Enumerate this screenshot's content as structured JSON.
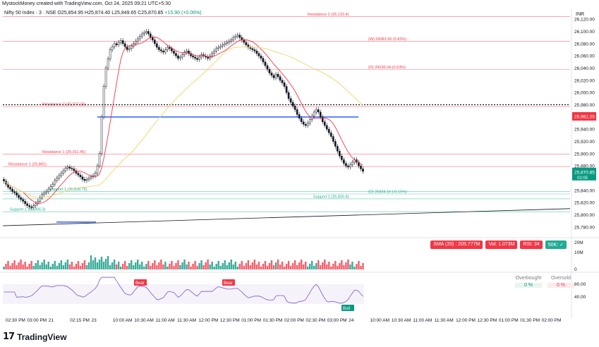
{
  "credit": "MystockMoney created with TradingView.com, Oct 24, 2025 09:21 UTC+5:30",
  "legend": {
    "symbol": "Nifty 50 Index · 3 · NSE",
    "open_label": "O",
    "open": "25,854.95",
    "high_label": "H",
    "high": "25,874.40",
    "low_label": "L",
    "low": "25,849.65",
    "close_label": "C",
    "close": "25,870.85",
    "change": "+15.90 (+0.06%)"
  },
  "currency": "INR",
  "colors": {
    "up": "#089981",
    "down": "#f23645",
    "sma_fast": "#f23645",
    "sma_slow": "#f2d36b",
    "blue_line": "#2962ff",
    "support": "#22ab94",
    "resistance": "#f23645",
    "rsi": "#7e57c2"
  },
  "chart_data": {
    "type": "candlestick",
    "y_ticks": [
      "26,120.00",
      "26,100.00",
      "26,080.00",
      "26,060.00",
      "26,040.00",
      "26,020.00",
      "26,000.00",
      "25,980.00",
      "25,960.00",
      "25,940.00",
      "25,920.00",
      "25,900.00",
      "25,880.00",
      "25,860.00",
      "25,840.00",
      "25,820.00",
      "25,800.00",
      "25,780.00"
    ],
    "y_range": [
      25774,
      26126
    ],
    "x_labels": [
      "02:30 PM",
      "03:00 PM",
      "21",
      "02:15 PM",
      "23",
      "10:00 AM",
      "10:30 AM",
      "11:00 AM",
      "11:30 AM",
      "12:00 PM",
      "12:30 PM",
      "01:00 PM",
      "01:30 PM",
      "02:00 PM",
      "02:30 PM",
      "03:00 PM",
      "24",
      "10:00 AM",
      "10:30 AM",
      "11:00 AM",
      "11:30 AM",
      "12:00 PM",
      "12:30 PM",
      "01:00 PM",
      "01:30 PM",
      "02:00 PM"
    ],
    "closes": [
      25855,
      25850,
      25845,
      25842,
      25838,
      25836,
      25832,
      25828,
      25825,
      25822,
      25818,
      25815,
      25813,
      25812,
      25815,
      25818,
      25822,
      25828,
      25833,
      25836,
      25838,
      25842,
      25846,
      25850,
      25856,
      25860,
      25864,
      25868,
      25872,
      25876,
      25878,
      25876,
      25875,
      25872,
      25868,
      25865,
      25862,
      25858,
      25856,
      25858,
      25860,
      25862,
      25864,
      25868,
      25880,
      25900,
      25960,
      26010,
      26040,
      26055,
      26070,
      26075,
      26080,
      26078,
      26082,
      26085,
      26080,
      26075,
      26070,
      26072,
      26076,
      26080,
      26084,
      26088,
      26092,
      26096,
      26098,
      26100,
      26096,
      26090,
      26086,
      26080,
      26074,
      26070,
      26068,
      26066,
      26070,
      26074,
      26072,
      26068,
      26064,
      26060,
      26056,
      26058,
      26062,
      26066,
      26068,
      26064,
      26060,
      26058,
      26056,
      26054,
      26058,
      26062,
      26060,
      26058,
      26056,
      26060,
      26064,
      26068,
      26072,
      26074,
      26076,
      26078,
      26080,
      26082,
      26084,
      26086,
      26090,
      26092,
      26094,
      26090,
      26086,
      26082,
      26078,
      26074,
      26072,
      26070,
      26068,
      26064,
      26060,
      26056,
      26050,
      26044,
      26038,
      26032,
      26028,
      26024,
      26030,
      26026,
      26020,
      26016,
      26010,
      26000,
      25990,
      25984,
      25978,
      25972,
      25964,
      25958,
      25952,
      25948,
      25946,
      25950,
      25956,
      25962,
      25968,
      25972,
      25968,
      25960,
      25952,
      25946,
      25940,
      25934,
      25928,
      25920,
      25912,
      25904,
      25896,
      25890,
      25884,
      25880,
      25878,
      25882,
      25886,
      25890,
      25886,
      25880,
      25875,
      25871
    ],
    "sma_fast_label": "SMA 20",
    "levels": [
      {
        "label": "Resistance 2 (26,133.4)",
        "price": 26124,
        "kind": "resistance"
      },
      {
        "label": "(W) 26083.56 (0.82%)",
        "price": 26084,
        "kind": "resistance"
      },
      {
        "label": "(D) 26036.04 (0.63%)",
        "price": 26038,
        "kind": "resistance"
      },
      {
        "label": "Resistance 2 (25,977.35)",
        "price": 25977,
        "kind": "resistance"
      },
      {
        "label": "Resistance 1 (25,911.45)",
        "price": 25899,
        "kind": "resistance"
      },
      {
        "label": "Resistance 1 (25,881)",
        "price": 25879,
        "kind": "resistance"
      },
      {
        "label": "Support 1 (25,838.75)",
        "price": 25838,
        "kind": "support"
      },
      {
        "label": "(D) 25834.16 (-0.15%)",
        "price": 25834,
        "kind": "support"
      },
      {
        "label": "Support 1 (25,826.9)",
        "price": 25826,
        "kind": "support"
      },
      {
        "label": "Support 1 (25,805.3)",
        "price": 25805,
        "kind": "support"
      }
    ],
    "markers": [
      {
        "label": "25,961.25",
        "price": 25961,
        "color": "#f23645"
      },
      {
        "label": "25,870.85",
        "sub": "02:05",
        "price": 25870,
        "color": "#089981"
      }
    ],
    "volume": {
      "ticks": [
        "20M",
        "10M",
        "0"
      ],
      "badges": [
        {
          "label": "SMA (20) : 205.777M",
          "color": "red"
        },
        {
          "label": "Vol: 1.073M",
          "color": "red"
        },
        {
          "label": "RSI: 34",
          "color": "red"
        },
        {
          "label": "50K: ✓",
          "color": "green"
        }
      ]
    },
    "rsi": {
      "ticks": [
        "80.00",
        "40.00"
      ],
      "tags": [
        "Bear",
        "Bear",
        "Bull"
      ],
      "table_headers": [
        "Overbought",
        "Oversold"
      ],
      "table_values": [
        "0 %",
        "0 %"
      ]
    }
  },
  "logo": "TradingView"
}
